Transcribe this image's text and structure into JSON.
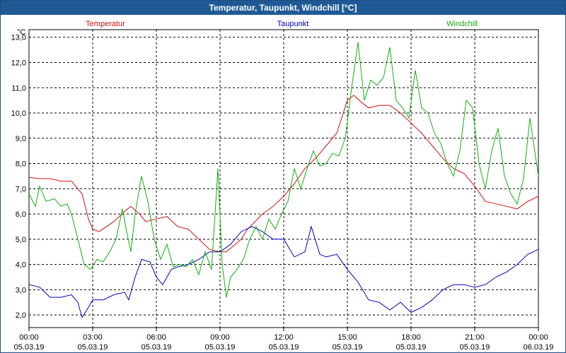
{
  "window": {
    "title": "Temperatur, Taupunkt, Windchill [°C]"
  },
  "chart_data": {
    "type": "line",
    "title": "Temperatur, Taupunkt, Windchill [°C]",
    "ylabel": "°C",
    "ylim": [
      1.5,
      13.3
    ],
    "xlim_hours": [
      0,
      24
    ],
    "grid": true,
    "legend_position": "top",
    "y_ticks": [
      "2,0",
      "3,0",
      "4,0",
      "5,0",
      "6,0",
      "7,0",
      "8,0",
      "9,0",
      "10,0",
      "11,0",
      "12,0",
      "13,0"
    ],
    "x_ticks": [
      {
        "time": "00:00",
        "date": "05.03.19"
      },
      {
        "time": "03:00",
        "date": "05.03.19"
      },
      {
        "time": "06:00",
        "date": "05.03.19"
      },
      {
        "time": "09:00",
        "date": "05.03.19"
      },
      {
        "time": "12:00",
        "date": "05.03.19"
      },
      {
        "time": "15:00",
        "date": "05.03.19"
      },
      {
        "time": "18:00",
        "date": "05.03.19"
      },
      {
        "time": "21:00",
        "date": "05.03.19"
      },
      {
        "time": "00:00",
        "date": "06.03.19"
      }
    ],
    "series": [
      {
        "name": "Temperatur",
        "color": "#d01010",
        "points": [
          [
            0,
            7.45
          ],
          [
            0.5,
            7.4
          ],
          [
            1,
            7.4
          ],
          [
            1.5,
            7.3
          ],
          [
            2,
            7.3
          ],
          [
            2.5,
            6.8
          ],
          [
            2.8,
            5.8
          ],
          [
            3,
            5.4
          ],
          [
            3.3,
            5.3
          ],
          [
            4,
            5.7
          ],
          [
            4.5,
            6.1
          ],
          [
            4.8,
            6.3
          ],
          [
            5.2,
            6.0
          ],
          [
            5.5,
            5.7
          ],
          [
            6,
            5.8
          ],
          [
            6.5,
            5.9
          ],
          [
            7,
            5.5
          ],
          [
            7.5,
            5.4
          ],
          [
            8,
            5.0
          ],
          [
            8.5,
            4.6
          ],
          [
            9,
            4.5
          ],
          [
            9.3,
            4.5
          ],
          [
            10,
            5.0
          ],
          [
            10.3,
            5.4
          ],
          [
            11,
            6.0
          ],
          [
            11.5,
            6.3
          ],
          [
            12,
            6.7
          ],
          [
            12.5,
            7.2
          ],
          [
            13,
            7.8
          ],
          [
            13.5,
            8.2
          ],
          [
            14,
            8.7
          ],
          [
            14.5,
            9.2
          ],
          [
            15,
            10.5
          ],
          [
            15.3,
            10.7
          ],
          [
            15.7,
            10.4
          ],
          [
            16,
            10.2
          ],
          [
            16.5,
            10.3
          ],
          [
            17,
            10.3
          ],
          [
            17.5,
            10.0
          ],
          [
            18,
            9.6
          ],
          [
            18.5,
            9.2
          ],
          [
            19,
            8.7
          ],
          [
            19.5,
            8.2
          ],
          [
            20,
            7.8
          ],
          [
            20.5,
            7.6
          ],
          [
            21,
            7.1
          ],
          [
            21.5,
            6.5
          ],
          [
            22,
            6.4
          ],
          [
            22.5,
            6.3
          ],
          [
            23,
            6.2
          ],
          [
            23.5,
            6.5
          ],
          [
            24,
            6.7
          ]
        ]
      },
      {
        "name": "Taupunkt",
        "color": "#0000c0",
        "points": [
          [
            0,
            3.2
          ],
          [
            0.5,
            3.1
          ],
          [
            1,
            2.7
          ],
          [
            1.5,
            2.7
          ],
          [
            2,
            2.8
          ],
          [
            2.3,
            2.5
          ],
          [
            2.5,
            1.9
          ],
          [
            2.8,
            2.3
          ],
          [
            3,
            2.6
          ],
          [
            3.5,
            2.6
          ],
          [
            4,
            2.8
          ],
          [
            4.5,
            2.9
          ],
          [
            4.7,
            2.6
          ],
          [
            5,
            3.5
          ],
          [
            5.3,
            4.2
          ],
          [
            5.7,
            4.1
          ],
          [
            6,
            3.5
          ],
          [
            6.3,
            3.2
          ],
          [
            6.7,
            3.8
          ],
          [
            7,
            3.9
          ],
          [
            7.5,
            4.0
          ],
          [
            8,
            4.2
          ],
          [
            8.5,
            4.5
          ],
          [
            9,
            4.5
          ],
          [
            9.5,
            4.8
          ],
          [
            10,
            5.3
          ],
          [
            10.5,
            5.5
          ],
          [
            11,
            5.3
          ],
          [
            11.5,
            5.0
          ],
          [
            12,
            5.0
          ],
          [
            12.5,
            4.3
          ],
          [
            13,
            4.5
          ],
          [
            13.3,
            5.5
          ],
          [
            13.7,
            4.4
          ],
          [
            14,
            4.3
          ],
          [
            14.5,
            4.4
          ],
          [
            15,
            3.8
          ],
          [
            15.5,
            3.3
          ],
          [
            16,
            2.6
          ],
          [
            16.5,
            2.5
          ],
          [
            17,
            2.2
          ],
          [
            17.5,
            2.5
          ],
          [
            18,
            2.1
          ],
          [
            18.5,
            2.3
          ],
          [
            19,
            2.6
          ],
          [
            19.5,
            3.0
          ],
          [
            20,
            3.2
          ],
          [
            20.5,
            3.2
          ],
          [
            21,
            3.1
          ],
          [
            21.5,
            3.2
          ],
          [
            22,
            3.5
          ],
          [
            22.5,
            3.7
          ],
          [
            23,
            4.0
          ],
          [
            23.5,
            4.4
          ],
          [
            24,
            4.6
          ]
        ]
      },
      {
        "name": "Windchill",
        "color": "#10b010",
        "points": [
          [
            0,
            6.8
          ],
          [
            0.3,
            6.3
          ],
          [
            0.5,
            7.1
          ],
          [
            0.8,
            6.5
          ],
          [
            1.2,
            6.6
          ],
          [
            1.5,
            6.3
          ],
          [
            1.8,
            6.4
          ],
          [
            2,
            6.0
          ],
          [
            2.3,
            5.0
          ],
          [
            2.6,
            4.0
          ],
          [
            2.9,
            3.8
          ],
          [
            3.2,
            4.2
          ],
          [
            3.5,
            4.1
          ],
          [
            3.8,
            4.5
          ],
          [
            4.1,
            5.0
          ],
          [
            4.4,
            6.2
          ],
          [
            4.6,
            5.3
          ],
          [
            4.8,
            4.5
          ],
          [
            5,
            6.0
          ],
          [
            5.3,
            7.5
          ],
          [
            5.6,
            6.5
          ],
          [
            5.9,
            5.0
          ],
          [
            6.2,
            4.2
          ],
          [
            6.5,
            4.8
          ],
          [
            6.8,
            3.9
          ],
          [
            7.1,
            4.0
          ],
          [
            7.4,
            3.9
          ],
          [
            7.7,
            4.2
          ],
          [
            8,
            3.6
          ],
          [
            8.3,
            4.5
          ],
          [
            8.6,
            3.8
          ],
          [
            8.9,
            7.8
          ],
          [
            9.1,
            4.0
          ],
          [
            9.3,
            2.7
          ],
          [
            9.5,
            3.5
          ],
          [
            9.8,
            3.8
          ],
          [
            10.1,
            4.2
          ],
          [
            10.4,
            5.0
          ],
          [
            10.7,
            5.5
          ],
          [
            11,
            5.0
          ],
          [
            11.3,
            5.8
          ],
          [
            11.6,
            5.4
          ],
          [
            11.9,
            6.0
          ],
          [
            12.2,
            6.5
          ],
          [
            12.5,
            7.8
          ],
          [
            12.8,
            7.0
          ],
          [
            13.1,
            7.8
          ],
          [
            13.4,
            8.5
          ],
          [
            13.7,
            7.9
          ],
          [
            14,
            8.0
          ],
          [
            14.3,
            8.4
          ],
          [
            14.6,
            8.3
          ],
          [
            14.9,
            9.0
          ],
          [
            15.2,
            11.0
          ],
          [
            15.5,
            12.8
          ],
          [
            15.8,
            10.5
          ],
          [
            16.1,
            11.3
          ],
          [
            16.4,
            11.1
          ],
          [
            16.7,
            11.4
          ],
          [
            17,
            12.6
          ],
          [
            17.3,
            10.5
          ],
          [
            17.6,
            10.2
          ],
          [
            17.9,
            9.8
          ],
          [
            18.2,
            11.7
          ],
          [
            18.5,
            10.2
          ],
          [
            18.8,
            10.0
          ],
          [
            19.1,
            9.2
          ],
          [
            19.4,
            8.8
          ],
          [
            19.7,
            8.0
          ],
          [
            20,
            7.5
          ],
          [
            20.3,
            8.5
          ],
          [
            20.6,
            10.5
          ],
          [
            20.9,
            10.2
          ],
          [
            21.2,
            8.0
          ],
          [
            21.5,
            7.0
          ],
          [
            21.8,
            8.5
          ],
          [
            22.1,
            9.4
          ],
          [
            22.4,
            7.5
          ],
          [
            22.7,
            6.8
          ],
          [
            23,
            6.4
          ],
          [
            23.3,
            7.4
          ],
          [
            23.6,
            9.8
          ],
          [
            24,
            7.5
          ]
        ]
      }
    ]
  }
}
